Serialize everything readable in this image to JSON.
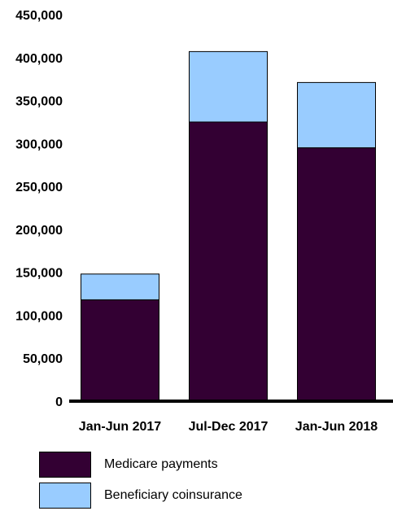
{
  "chart_data": {
    "type": "bar",
    "stacked": true,
    "categories": [
      "Jan-Jun 2017",
      "Jul-Dec 2017",
      "Jan-Jun 2018"
    ],
    "series": [
      {
        "name": "Medicare payments",
        "values": [
          118000,
          325000,
          295000
        ],
        "color": "#330033"
      },
      {
        "name": "Beneficiary coinsurance",
        "values": [
          30000,
          82000,
          76000
        ],
        "color": "#99ccff"
      }
    ],
    "ylim": [
      0,
      450000
    ],
    "yticks": [
      "0",
      "50,000",
      "100,000",
      "150,000",
      "200,000",
      "250,000",
      "300,000",
      "350,000",
      "400,000",
      "450,000"
    ],
    "ytick_values": [
      0,
      50000,
      100000,
      150000,
      200000,
      250000,
      300000,
      350000,
      400000,
      450000
    ],
    "grid": false,
    "legend_position": "bottom-left"
  }
}
